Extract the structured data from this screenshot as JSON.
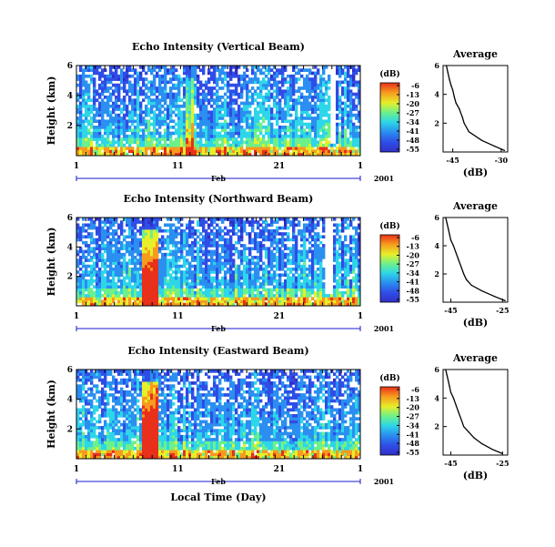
{
  "chart_data": [
    {
      "type": "heatmap",
      "title": "Echo Intensity (Vertical Beam)",
      "ylabel": "Height (km)",
      "xticks": [
        "1",
        "11",
        "21",
        "1"
      ],
      "month_label": "Feb",
      "year_label": "2001",
      "ylim": [
        0,
        6
      ],
      "yticks": [
        "6",
        "4",
        "2"
      ],
      "colorbar_label": "(dB)",
      "colorbar_ticks": [
        "-6",
        "-13",
        "-20",
        "-27",
        "-34",
        "-41",
        "-48",
        "-55"
      ],
      "profile": {
        "title": "Average",
        "xlabel": "(dB)",
        "xlim": [
          -48,
          -28
        ],
        "xticks": [
          "-45",
          "-30"
        ],
        "yticks": [
          "6",
          "4",
          "2"
        ],
        "x": [
          -47,
          -46.5,
          -46,
          -45.5,
          -45,
          -44.5,
          -44,
          -43,
          -42.5,
          -42,
          -41.5,
          -40,
          -36,
          -32,
          -29
        ],
        "y": [
          6.0,
          5.5,
          5.0,
          4.6,
          4.3,
          3.8,
          3.4,
          3.0,
          2.7,
          2.4,
          2.0,
          1.4,
          0.8,
          0.4,
          0.1
        ]
      }
    },
    {
      "type": "heatmap",
      "title": "Echo Intensity (Northward Beam)",
      "ylabel": "Height (km)",
      "xticks": [
        "1",
        "11",
        "21",
        "1"
      ],
      "month_label": "Feb",
      "year_label": "2001",
      "ylim": [
        0,
        6
      ],
      "yticks": [
        "6",
        "4",
        "2"
      ],
      "colorbar_label": "(dB)",
      "colorbar_ticks": [
        "-6",
        "-13",
        "-20",
        "-27",
        "-34",
        "-41",
        "-48",
        "-55"
      ],
      "profile": {
        "title": "Average",
        "xlabel": "(dB)",
        "xlim": [
          -48,
          -23
        ],
        "xticks": [
          "-45",
          "-25"
        ],
        "yticks": [
          "6",
          "4",
          "2"
        ],
        "x": [
          -47,
          -46.5,
          -46,
          -45.5,
          -45,
          -44,
          -43,
          -42,
          -41,
          -40,
          -39,
          -37,
          -33,
          -28,
          -24
        ],
        "y": [
          6.0,
          5.6,
          5.2,
          4.8,
          4.4,
          4.0,
          3.5,
          3.0,
          2.5,
          2.0,
          1.6,
          1.2,
          0.8,
          0.4,
          0.1
        ]
      }
    },
    {
      "type": "heatmap",
      "title": "Echo Intensity (Eastward Beam)",
      "ylabel": "Height (km)",
      "xlabel": "Local Time (Day)",
      "xticks": [
        "1",
        "11",
        "21",
        "1"
      ],
      "month_label": "Feb",
      "year_label": "2001",
      "ylim": [
        0,
        6
      ],
      "yticks": [
        "6",
        "4",
        "2"
      ],
      "colorbar_label": "(dB)",
      "colorbar_ticks": [
        "-6",
        "-13",
        "-20",
        "-27",
        "-34",
        "-41",
        "-48",
        "-55"
      ],
      "profile": {
        "title": "Average",
        "xlabel": "(dB)",
        "xlim": [
          -48,
          -23
        ],
        "xticks": [
          "-45",
          "-25"
        ],
        "yticks": [
          "6",
          "4",
          "2"
        ],
        "x": [
          -47,
          -46.5,
          -46,
          -45.5,
          -45,
          -44,
          -43,
          -42,
          -41,
          -40,
          -38,
          -36,
          -33,
          -29,
          -25
        ],
        "y": [
          6.0,
          5.6,
          5.2,
          4.8,
          4.4,
          4.0,
          3.5,
          3.0,
          2.5,
          2.0,
          1.6,
          1.2,
          0.8,
          0.4,
          0.1
        ]
      }
    }
  ],
  "colors": {
    "colormap": [
      "#3030c8",
      "#2f4de6",
      "#2a8ff0",
      "#2dd6e8",
      "#6df08a",
      "#e6ef2a",
      "#f79a1e",
      "#e8301a"
    ]
  }
}
